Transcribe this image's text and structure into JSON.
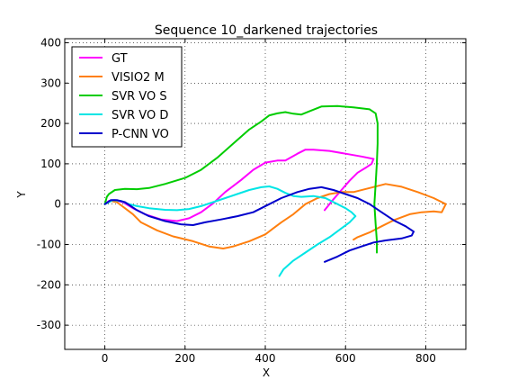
{
  "chart_data": {
    "type": "line",
    "title": "Sequence 10_darkened trajectories",
    "xlabel": "X",
    "ylabel": "Y",
    "xlim": [
      -100,
      900
    ],
    "ylim": [
      -360,
      410
    ],
    "xticks": [
      0,
      200,
      400,
      600,
      800
    ],
    "yticks": [
      -300,
      -200,
      -100,
      0,
      100,
      200,
      300,
      400
    ],
    "grid": true,
    "legend_position": "top-left",
    "series": [
      {
        "name": "GT",
        "color": "#ff00ff",
        "x": [
          0,
          10,
          25,
          45,
          70,
          100,
          140,
          180,
          210,
          240,
          270,
          300,
          340,
          370,
          400,
          430,
          450,
          480,
          500,
          520,
          560,
          600,
          640,
          670,
          665,
          650,
          630,
          610,
          590,
          570,
          548
        ],
        "y": [
          0,
          8,
          10,
          5,
          -10,
          -25,
          -38,
          -42,
          -35,
          -20,
          2,
          30,
          60,
          85,
          103,
          108,
          108,
          125,
          135,
          135,
          132,
          125,
          118,
          112,
          100,
          90,
          78,
          58,
          35,
          12,
          -15
        ]
      },
      {
        "name": "VISIO2 M",
        "color": "#ff7f0e",
        "x": [
          0,
          15,
          30,
          50,
          70,
          90,
          130,
          170,
          220,
          260,
          295,
          320,
          360,
          400,
          420,
          440,
          470,
          500,
          530,
          560,
          590,
          620,
          660,
          700,
          740,
          780,
          820,
          850,
          840,
          820,
          790,
          760,
          720,
          690,
          660,
          630,
          620
        ],
        "y": [
          0,
          8,
          5,
          -10,
          -25,
          -45,
          -65,
          -80,
          -92,
          -105,
          -110,
          -105,
          -92,
          -75,
          -60,
          -45,
          -25,
          0,
          15,
          25,
          30,
          30,
          40,
          50,
          43,
          30,
          15,
          0,
          -20,
          -18,
          -20,
          -25,
          -40,
          -55,
          -70,
          -82,
          -88
        ]
      },
      {
        "name": "SVR VO S",
        "color": "#00cc00",
        "x": [
          0,
          5,
          10,
          25,
          50,
          80,
          110,
          150,
          200,
          240,
          280,
          320,
          360,
          390,
          410,
          430,
          450,
          470,
          490,
          510,
          540,
          580,
          620,
          660,
          675,
          680,
          680,
          678,
          675,
          672,
          675,
          678,
          678
        ],
        "y": [
          0,
          18,
          25,
          35,
          38,
          37,
          40,
          50,
          65,
          85,
          115,
          150,
          185,
          205,
          220,
          225,
          228,
          224,
          222,
          230,
          242,
          243,
          240,
          235,
          225,
          200,
          150,
          100,
          50,
          0,
          -50,
          -90,
          -120
        ]
      },
      {
        "name": "SVR VO D",
        "color": "#00e5e5",
        "x": [
          0,
          20,
          40,
          60,
          80,
          110,
          150,
          180,
          210,
          240,
          270,
          300,
          330,
          360,
          390,
          410,
          430,
          450,
          470,
          490,
          520,
          550,
          580,
          600,
          615,
          625,
          610,
          590,
          560,
          530,
          500,
          470,
          445,
          435
        ],
        "y": [
          0,
          10,
          8,
          0,
          -5,
          -10,
          -14,
          -15,
          -12,
          -5,
          5,
          15,
          25,
          35,
          42,
          44,
          38,
          28,
          20,
          18,
          20,
          15,
          0,
          -10,
          -20,
          -30,
          -45,
          -60,
          -82,
          -100,
          -120,
          -140,
          -162,
          -178
        ]
      },
      {
        "name": "P-CNN VO",
        "color": "#0000cc",
        "x": [
          0,
          15,
          30,
          50,
          80,
          110,
          150,
          190,
          220,
          250,
          290,
          330,
          370,
          410,
          440,
          480,
          510,
          540,
          570,
          600,
          630,
          660,
          690,
          720,
          750,
          770,
          765,
          740,
          700,
          670,
          640,
          610,
          580,
          548
        ],
        "y": [
          0,
          10,
          10,
          5,
          -15,
          -30,
          -42,
          -50,
          -52,
          -45,
          -38,
          -30,
          -20,
          0,
          15,
          30,
          38,
          42,
          35,
          25,
          15,
          0,
          -20,
          -40,
          -55,
          -68,
          -78,
          -85,
          -90,
          -95,
          -105,
          -115,
          -130,
          -143
        ]
      }
    ]
  }
}
